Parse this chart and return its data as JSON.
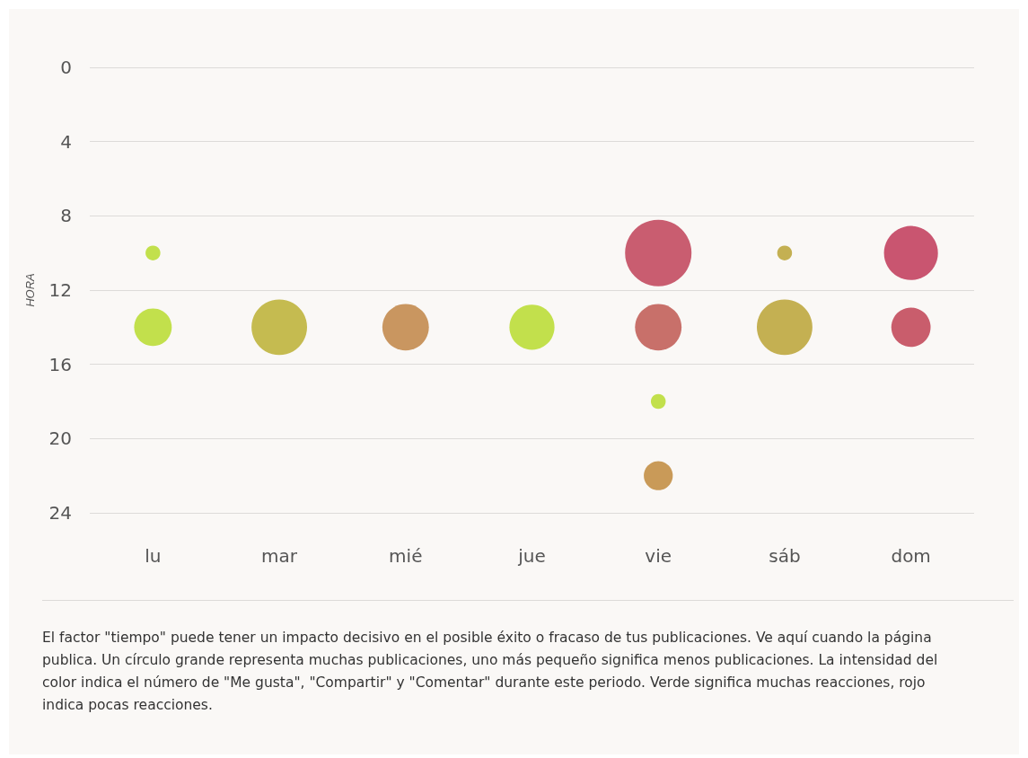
{
  "chart_data": {
    "type": "bubble",
    "ylabel": "HORA",
    "categories": [
      "lu",
      "mar",
      "mié",
      "jue",
      "vie",
      "sáb",
      "dom"
    ],
    "series": [
      {
        "x": [
          "lu",
          "lu",
          "mar",
          "mié",
          "jue",
          "vie",
          "vie",
          "vie",
          "vie",
          "sáb",
          "sáb",
          "dom",
          "dom"
        ],
        "values": [
          10,
          14,
          14,
          14,
          14,
          10,
          14,
          18,
          22,
          10,
          14,
          10,
          14
        ],
        "sizes": [
          0.05,
          0.32,
          0.7,
          0.49,
          0.46,
          1,
          0.49,
          0.05,
          0.19,
          0.05,
          0.7,
          0.66,
          0.35
        ],
        "colors": [
          "#c2e04c",
          "#c2e04c",
          "#c5bb50",
          "#c99660",
          "#c2e04c",
          "#c95d70",
          "#c8706a",
          "#c2e04c",
          "#c99a58",
          "#c4b052",
          "#c4b052",
          "#c95570",
          "#c95d6c"
        ]
      }
    ],
    "ylim": [
      24,
      0
    ],
    "yticks": [
      0,
      4,
      8,
      12,
      16,
      20,
      24
    ],
    "grid": "y",
    "annotations": [
      "El factor \"tiempo\" puede tener un impacto decisivo en el posible éxito o fracaso de tus publicaciones. Ve aquí cuando la página publica. Un círculo grande representa muchas publicaciones, uno más pequeño significa menos publicaciones. La intensidad del color indica el número de \"Me gusta\", \"Compartir\" y \"Comentar\" durante este periodo. Verde significa muchas reacciones, rojo indica pocas reacciones."
    ]
  }
}
